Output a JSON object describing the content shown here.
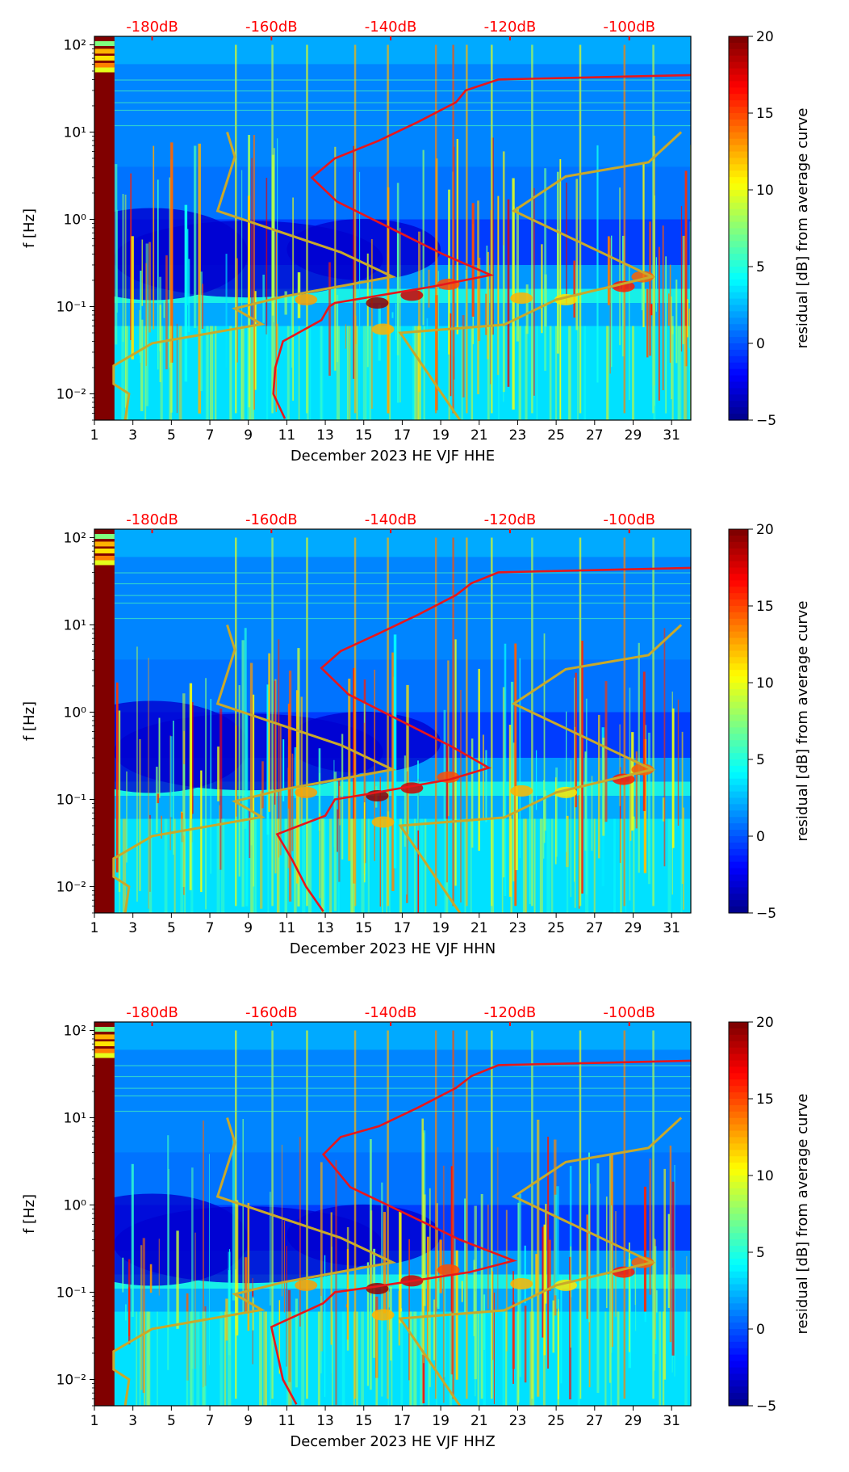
{
  "colorbar": {
    "label": "residual [dB] from average curve",
    "ticks": [
      "20",
      "15",
      "10",
      "5",
      "0",
      "−5"
    ],
    "range": [
      -5,
      20
    ]
  },
  "axes": {
    "ylabel": "f [Hz]",
    "xticks": [
      "1",
      "3",
      "5",
      "7",
      "9",
      "11",
      "13",
      "15",
      "17",
      "19",
      "21",
      "23",
      "25",
      "27",
      "29",
      "31"
    ],
    "yticks": [
      "10²",
      "10¹",
      "10⁰",
      "10⁻¹",
      "10⁻²"
    ],
    "top_ticks": [
      "-180dB",
      "-160dB",
      "-140dB",
      "-120dB",
      "-100dB"
    ]
  },
  "colors": {
    "median_curve": "#e8161b",
    "noise_model": "#c9a92a",
    "top_labels": "#ff0000"
  },
  "chart_data": [
    {
      "type": "heatmap",
      "xlabel": "December 2023 HE VJF  HHE",
      "ylabel": "f [Hz]",
      "xlim": [
        1,
        32
      ],
      "ylim": [
        0.005,
        125
      ],
      "colorbar_range": [
        -5,
        20
      ],
      "top_axis": {
        "label_values_dB": [
          -180,
          -160,
          -140,
          -120,
          -100
        ]
      },
      "median_curve_points": [
        [
          10.9,
          0.0052
        ],
        [
          10.3,
          0.01
        ],
        [
          10.4,
          0.02
        ],
        [
          10.8,
          0.04
        ],
        [
          12.8,
          0.07
        ],
        [
          13.2,
          0.1
        ],
        [
          13.5,
          0.11
        ],
        [
          18.6,
          0.17
        ],
        [
          21.6,
          0.23
        ],
        [
          19.1,
          0.4
        ],
        [
          13.6,
          1.6
        ],
        [
          12.3,
          3.0
        ],
        [
          13.5,
          5.0
        ],
        [
          15.8,
          8.0
        ],
        [
          17.8,
          13.0
        ],
        [
          19.8,
          22.0
        ],
        [
          20.3,
          30.0
        ],
        [
          22.0,
          40.0
        ],
        [
          32.0,
          45.0
        ]
      ]
    },
    {
      "type": "heatmap",
      "xlabel": "December 2023 HE VJF  HHN",
      "ylabel": "f [Hz]",
      "xlim": [
        1,
        32
      ],
      "ylim": [
        0.005,
        125
      ],
      "colorbar_range": [
        -5,
        20
      ],
      "top_axis": {
        "label_values_dB": [
          -180,
          -160,
          -140,
          -120,
          -100
        ]
      },
      "median_curve_points": [
        [
          12.9,
          0.0052
        ],
        [
          12.0,
          0.01
        ],
        [
          11.3,
          0.02
        ],
        [
          10.5,
          0.04
        ],
        [
          13.0,
          0.065
        ],
        [
          13.5,
          0.1
        ],
        [
          15.2,
          0.115
        ],
        [
          19.5,
          0.17
        ],
        [
          21.5,
          0.23
        ],
        [
          19.6,
          0.4
        ],
        [
          14.2,
          1.6
        ],
        [
          12.8,
          3.2
        ],
        [
          13.8,
          5.0
        ],
        [
          15.8,
          8.0
        ],
        [
          17.8,
          13.0
        ],
        [
          19.8,
          22.0
        ],
        [
          20.6,
          30.0
        ],
        [
          22.0,
          40.0
        ],
        [
          32.0,
          45.0
        ]
      ]
    },
    {
      "type": "heatmap",
      "xlabel": "December 2023 HE VJF  HHZ",
      "ylabel": "f [Hz]",
      "xlim": [
        1,
        32
      ],
      "ylim": [
        0.005,
        125
      ],
      "colorbar_range": [
        -5,
        20
      ],
      "top_axis": {
        "label_values_dB": [
          -180,
          -160,
          -140,
          -120,
          -100
        ]
      },
      "median_curve_points": [
        [
          11.5,
          0.0052
        ],
        [
          10.8,
          0.01
        ],
        [
          10.5,
          0.02
        ],
        [
          10.2,
          0.04
        ],
        [
          12.9,
          0.075
        ],
        [
          13.5,
          0.1
        ],
        [
          15.5,
          0.115
        ],
        [
          20.5,
          0.17
        ],
        [
          22.8,
          0.23
        ],
        [
          20.0,
          0.4
        ],
        [
          14.3,
          1.6
        ],
        [
          12.9,
          3.8
        ],
        [
          13.8,
          6.0
        ],
        [
          15.8,
          8.0
        ],
        [
          17.8,
          13.0
        ],
        [
          19.8,
          22.0
        ],
        [
          20.6,
          30.0
        ],
        [
          22.0,
          40.0
        ],
        [
          32.0,
          45.0
        ]
      ]
    }
  ]
}
